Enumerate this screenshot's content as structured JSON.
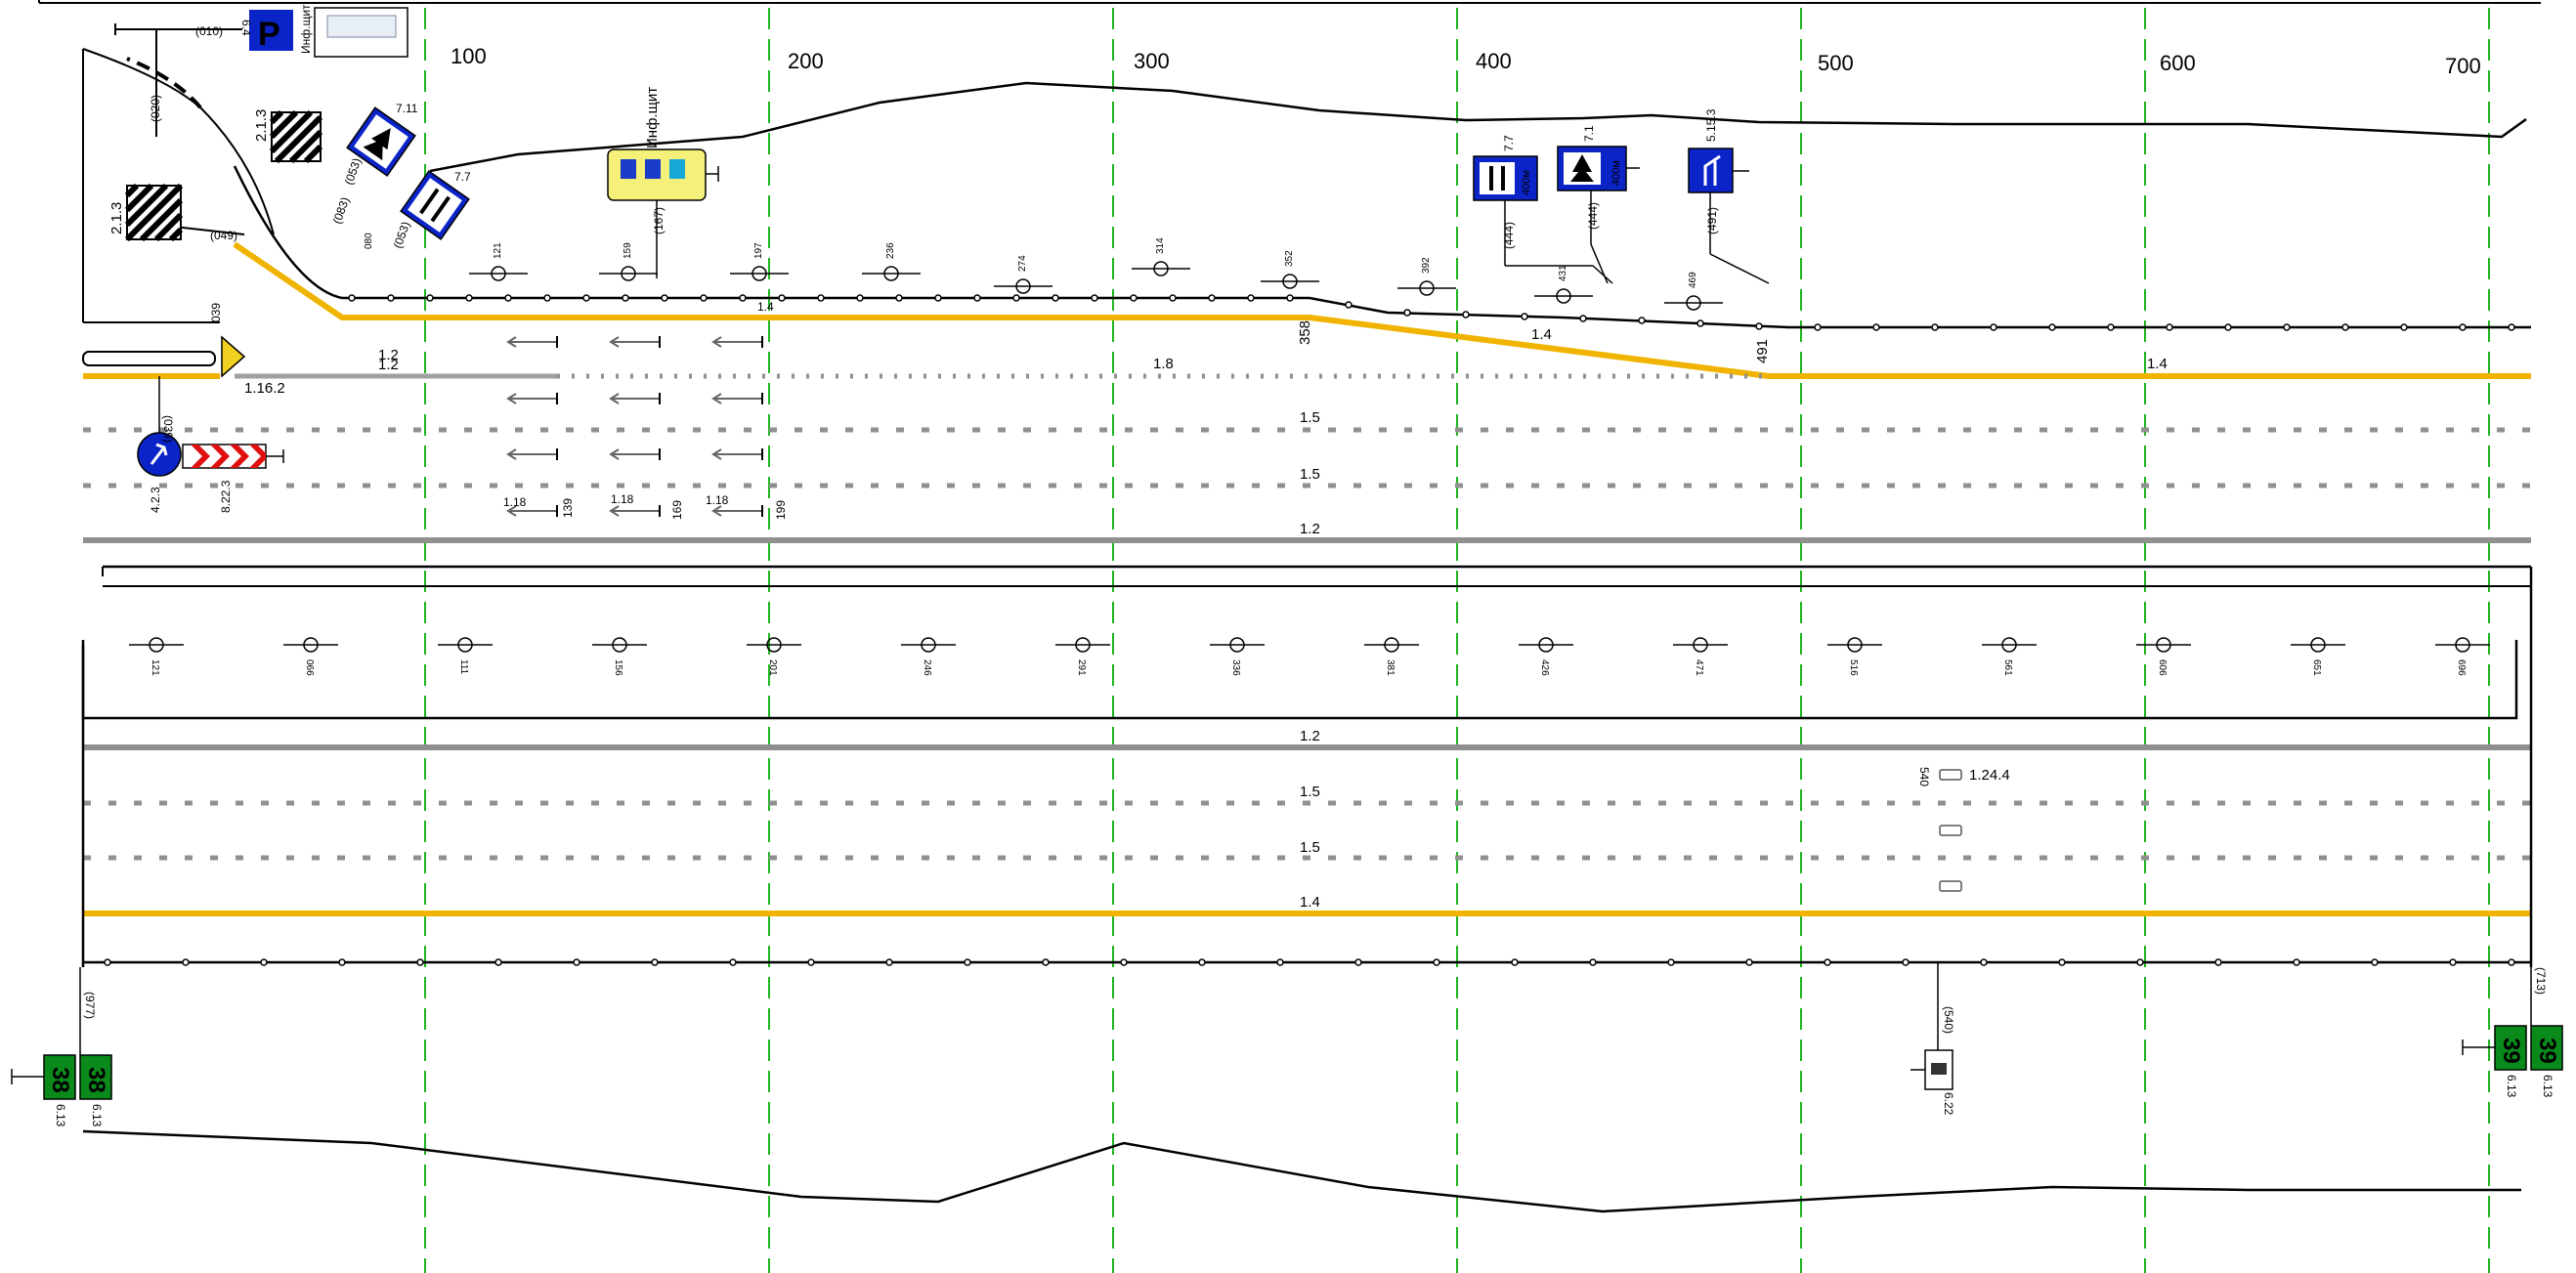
{
  "colors": {
    "guide": "#1fb51f",
    "edge": "#f0b400",
    "dash": "#909090",
    "sign_blue": "#0a24c8",
    "sign_green": "#0b8a1c",
    "sign_red": "#e01010",
    "infoboard": "#f4f07a"
  },
  "station_marks": [
    "100",
    "200",
    "300",
    "400",
    "500",
    "600",
    "700"
  ],
  "top_carriageway": {
    "markings": {
      "m_1_4_a": "1.4",
      "m_1_4_b": "1.4",
      "m_1_4_c": "1.4",
      "m_1_2_a": "1.2",
      "m_1_2_b": "1.2",
      "m_1_16_2": "1.16.2",
      "m_1_8": "1.8",
      "m_1_5_a": "1.5",
      "m_1_5_b": "1.5",
      "m_1_2_c": "1.2",
      "m_1_18_a": "1.18",
      "m_1_18_b": "1.18",
      "m_1_18_c": "1.18"
    },
    "chainages": {
      "c139": "139",
      "c169": "169",
      "c199": "199",
      "c358": "358",
      "c491": "491",
      "c039": "039"
    },
    "signs": {
      "parking": "P",
      "code_parking": "6.4",
      "parking_offset": "(010)",
      "info_label_1": "Инф.щит",
      "info_label_2": "Инф.щит",
      "offset_020": "(020)",
      "offset_049": "(049)",
      "offset_053": "(053)",
      "offset_083": "(083)",
      "offset_167": "(167)",
      "offset_039": "(039)",
      "code_2_1_3_a": "2.1.3",
      "code_2_1_3_b": "2.1.3",
      "code_7_11": "7.11",
      "code_7_7_a": "7.7",
      "code_7_7_b": "7.7",
      "code_7_1": "7.1",
      "code_5_15_3": "5.15.3",
      "offset_444_a": "(444)",
      "offset_444_b": "(444)",
      "offset_491": "(491)",
      "distance_a": "400м",
      "distance_b": "400м",
      "code_4_2_3": "4.2.3",
      "code_8_22_3": "8.22.3",
      "code_080": "080"
    },
    "lamp_numbers": [
      "121",
      "159",
      "197",
      "236",
      "274",
      "314",
      "352",
      "392",
      "431",
      "469"
    ]
  },
  "median_lamp_numbers": [
    "121",
    "066",
    "111",
    "156",
    "201",
    "246",
    "291",
    "336",
    "381",
    "426",
    "471",
    "516",
    "561",
    "606",
    "651",
    "696"
  ],
  "bottom_carriageway": {
    "markings": {
      "m_1_2": "1.2",
      "m_1_5_a": "1.5",
      "m_1_5_b": "1.5",
      "m_1_4": "1.4",
      "m_1_24_4": "1.24.4"
    },
    "chainage_540": "540",
    "km_sign_left": "38",
    "km_sign_left_b": "38",
    "km_sign_right": "39",
    "km_sign_right_b": "39",
    "code_6_13_a": "6.13",
    "code_6_13_b": "6.13",
    "code_6_13_c": "6.13",
    "code_6_13_d": "6.13",
    "offset_977": "(977)",
    "offset_713": "(713)",
    "offset_540": "(540)",
    "code_6_22": "6.22"
  }
}
